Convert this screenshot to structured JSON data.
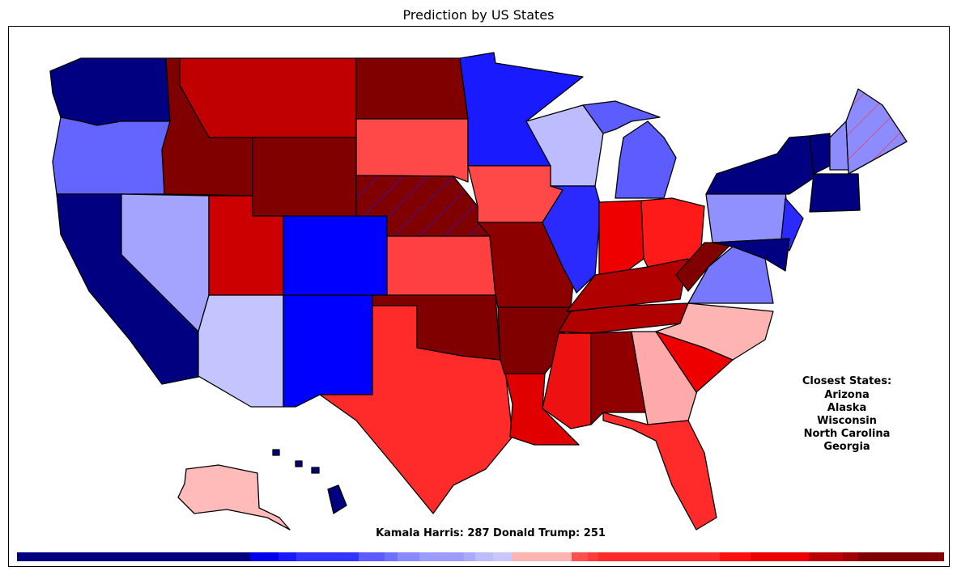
{
  "title": "Prediction by US States",
  "closest_states": {
    "heading": "Closest States:",
    "states": [
      "Arizona",
      "Alaska",
      "Wisconsin",
      "North Carolina",
      "Georgia"
    ]
  },
  "result": "Kamala Harris: 287 Donald Trump: 251"
}
